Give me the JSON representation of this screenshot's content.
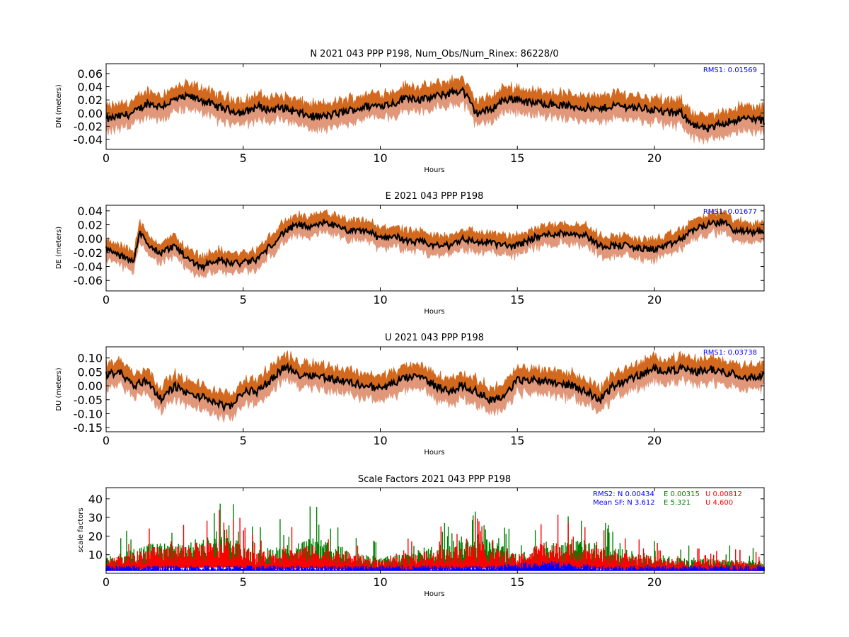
{
  "colors": {
    "upper_band": "#d2691e",
    "lower_band": "#e0977a",
    "center_line": "#000000",
    "rms_text": "#0000ff",
    "sf_N": "#0000ff",
    "sf_E": "#008000",
    "sf_U": "#ff0000"
  },
  "chart_data": [
    {
      "id": "N",
      "type": "line",
      "title": "N 2021 043 PPP  P198, Num_Obs/Num_Rinex: 86228/0",
      "xlabel": "Hours",
      "ylabel": "DN (meters)",
      "xlim": [
        0,
        24
      ],
      "ylim": [
        -0.055,
        0.075
      ],
      "xticks": [
        0,
        5,
        10,
        15,
        20
      ],
      "yticks": [
        "-0.04",
        "-0.02",
        "0.00",
        "0.02",
        "0.04",
        "0.06"
      ],
      "annotation": "RMS1:  0.01569",
      "band_halfwidth": 0.017,
      "noise": 0.006,
      "series": [
        {
          "x": [
            0,
            0.5,
            1,
            1.5,
            2,
            2.5,
            3,
            3.5,
            4,
            4.5,
            5,
            5.5,
            6,
            6.5,
            7,
            7.5,
            8,
            8.5,
            9,
            9.5,
            10,
            10.5,
            11,
            11.5,
            12,
            12.5,
            13,
            13.5,
            14,
            14.5,
            15,
            15.5,
            16,
            16.5,
            17,
            17.5,
            18,
            18.5,
            19,
            19.5,
            20,
            20.5,
            21,
            21.5,
            22,
            22.5,
            23,
            23.5,
            24
          ],
          "y": [
            -0.01,
            -0.005,
            0.0,
            0.015,
            0.01,
            0.02,
            0.025,
            0.02,
            0.01,
            0.005,
            0.0,
            0.01,
            0.005,
            0.008,
            0.0,
            -0.005,
            -0.005,
            0.0,
            0.005,
            0.01,
            0.012,
            0.015,
            0.025,
            0.02,
            0.025,
            0.03,
            0.035,
            0.0,
            0.005,
            0.02,
            0.022,
            0.015,
            0.015,
            0.012,
            0.01,
            0.008,
            0.005,
            0.012,
            0.01,
            0.008,
            0.005,
            0.0,
            0.0,
            -0.02,
            -0.025,
            -0.015,
            -0.01,
            -0.008,
            -0.012
          ]
        }
      ]
    },
    {
      "id": "E",
      "type": "line",
      "title": "E 2021 043 PPP  P198",
      "xlabel": "Hours",
      "ylabel": "DE (meters)",
      "xlim": [
        0,
        24
      ],
      "ylim": [
        -0.075,
        0.048
      ],
      "xticks": [
        0,
        5,
        10,
        15,
        20
      ],
      "yticks": [
        "-0.06",
        "-0.04",
        "-0.02",
        "0.00",
        "0.02",
        "0.04"
      ],
      "annotation": "RMS1:  0.01677",
      "band_halfwidth": 0.013,
      "noise": 0.005,
      "series": [
        {
          "x": [
            0,
            0.5,
            1,
            1.25,
            1.5,
            2,
            2.5,
            3,
            3.5,
            4,
            4.5,
            5,
            5.5,
            6,
            6.5,
            7,
            7.5,
            8,
            8.5,
            9,
            9.5,
            10,
            10.5,
            11,
            11.5,
            12,
            12.5,
            13,
            13.5,
            14,
            14.5,
            15,
            15.5,
            16,
            16.5,
            17,
            17.5,
            18,
            18.5,
            19,
            19.5,
            20,
            20.5,
            21,
            21.5,
            22,
            22.5,
            23,
            23.5,
            24
          ],
          "y": [
            -0.015,
            -0.025,
            -0.03,
            0.01,
            -0.01,
            -0.02,
            -0.01,
            -0.03,
            -0.04,
            -0.03,
            -0.035,
            -0.035,
            -0.03,
            -0.01,
            0.01,
            0.02,
            0.015,
            0.025,
            0.015,
            0.01,
            0.012,
            0.0,
            0.005,
            -0.005,
            -0.005,
            -0.01,
            -0.01,
            0.0,
            -0.005,
            -0.005,
            -0.01,
            -0.01,
            0.0,
            0.005,
            0.008,
            0.008,
            0.005,
            -0.01,
            -0.01,
            -0.01,
            -0.015,
            -0.015,
            -0.01,
            0.0,
            0.015,
            0.02,
            0.025,
            0.01,
            0.01,
            0.01
          ]
        }
      ]
    },
    {
      "id": "U",
      "type": "line",
      "title": "U 2021 043 PPP  P198",
      "xlabel": "Hours",
      "ylabel": "DU (meters)",
      "xlim": [
        0,
        24
      ],
      "ylim": [
        -0.165,
        0.14
      ],
      "xticks": [
        0,
        5,
        10,
        15,
        20
      ],
      "yticks": [
        "-0.15",
        "-0.10",
        "-0.05",
        "0.00",
        "0.05",
        "0.10"
      ],
      "annotation": "RMS1:  0.03738",
      "band_halfwidth": 0.04,
      "noise": 0.014,
      "series": [
        {
          "x": [
            0,
            0.5,
            1,
            1.5,
            2,
            2.5,
            3,
            3.5,
            4,
            4.5,
            5,
            5.5,
            6,
            6.5,
            7,
            7.5,
            8,
            8.5,
            9,
            9.5,
            10,
            10.5,
            11,
            11.5,
            12,
            12.5,
            13,
            13.5,
            14,
            14.5,
            15,
            15.5,
            16,
            16.5,
            17,
            17.5,
            18,
            18.5,
            19,
            19.5,
            20,
            20.5,
            21,
            21.5,
            22,
            22.5,
            23,
            23.5,
            24
          ],
          "y": [
            0.04,
            0.05,
            0.0,
            0.02,
            -0.05,
            0.0,
            -0.03,
            -0.04,
            -0.06,
            -0.08,
            -0.02,
            -0.02,
            0.02,
            0.07,
            0.04,
            0.04,
            0.03,
            0.02,
            0.01,
            0.0,
            -0.01,
            0.01,
            0.03,
            0.03,
            0.0,
            -0.02,
            0.0,
            -0.02,
            -0.05,
            -0.04,
            0.02,
            0.02,
            0.02,
            0.01,
            0.0,
            -0.02,
            -0.05,
            0.0,
            0.02,
            0.04,
            0.06,
            0.055,
            0.06,
            0.05,
            0.06,
            0.05,
            0.04,
            0.03,
            0.04
          ]
        }
      ]
    },
    {
      "id": "SF",
      "type": "scatter",
      "title": "Scale Factors 2021 043 PPP  P198",
      "xlabel": "Hours",
      "ylabel": "scale factors",
      "xlim": [
        0,
        24
      ],
      "ylim": [
        0,
        46
      ],
      "xticks": [
        0,
        5,
        10,
        15,
        20
      ],
      "yticks": [
        "10",
        "20",
        "30",
        "40"
      ],
      "legend_placement": "top-right",
      "annotation_rms2": {
        "prefix": "RMS2: N  0.00434",
        "E": "E  0.00315",
        "U": "U  0.00812"
      },
      "annotation_mean": {
        "prefix": "Mean SF: N   3.612",
        "E": "E   5.321",
        "U": "U   4.600"
      },
      "series": [
        {
          "name": "N",
          "x": [
            0,
            2,
            4,
            6,
            8,
            10,
            12,
            14,
            16,
            18,
            20,
            22,
            24
          ],
          "y": [
            3,
            3,
            3,
            3,
            3,
            3,
            3,
            3,
            5,
            3,
            3,
            3,
            3
          ]
        },
        {
          "name": "E",
          "x": [
            0,
            1.5,
            2.5,
            4.5,
            5.5,
            7.5,
            9,
            10,
            12,
            13.5,
            15,
            17,
            19,
            21,
            22,
            24
          ],
          "y": [
            6,
            12,
            12,
            15,
            9,
            14,
            9,
            6,
            11,
            16,
            8,
            14,
            9,
            6,
            6,
            5
          ]
        },
        {
          "name": "U",
          "x": [
            0,
            1.5,
            2.5,
            4.5,
            5.5,
            7.5,
            9,
            10,
            12,
            13.5,
            15,
            16,
            17,
            19,
            21,
            22,
            24
          ],
          "y": [
            5,
            10,
            11,
            13,
            8,
            11,
            8,
            5,
            9,
            12,
            7,
            13,
            11,
            8,
            5,
            6,
            4
          ]
        }
      ]
    }
  ]
}
